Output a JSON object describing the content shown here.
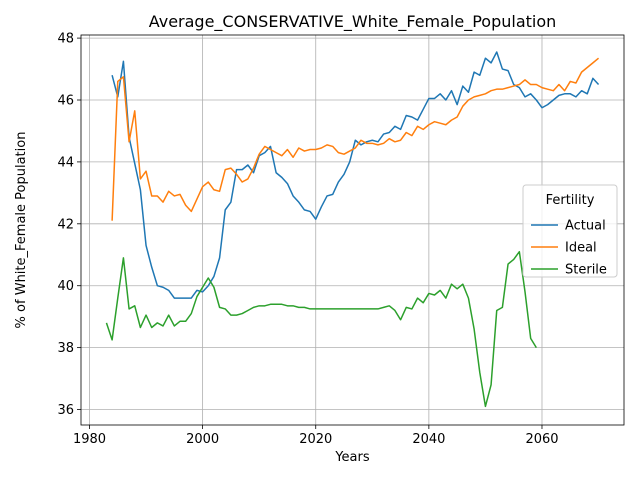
{
  "chart_data": {
    "type": "line",
    "title": "Average_CONSERVATIVE_White_Female_Population",
    "xlabel": "Years",
    "ylabel": "% of White_Female Population",
    "xlim": [
      1978.5,
      2074.5
    ],
    "ylim": [
      35.5,
      48.1
    ],
    "xticks": [
      1980,
      2000,
      2020,
      2040,
      2060
    ],
    "yticks": [
      36,
      38,
      40,
      42,
      44,
      46,
      48
    ],
    "grid": true,
    "legend": {
      "title": "Fertility",
      "position": "center-right"
    },
    "series": [
      {
        "name": "Actual",
        "color": "#1f77b4",
        "x": [
          1984,
          1985,
          1986,
          1987,
          1988,
          1989,
          1990,
          1991,
          1992,
          1993,
          1994,
          1995,
          1996,
          1997,
          1998,
          1999,
          2000,
          2001,
          2002,
          2003,
          2004,
          2005,
          2006,
          2007,
          2008,
          2009,
          2010,
          2011,
          2012,
          2013,
          2014,
          2015,
          2016,
          2017,
          2018,
          2019,
          2020,
          2021,
          2022,
          2023,
          2024,
          2025,
          2026,
          2027,
          2028,
          2029,
          2030,
          2031,
          2032,
          2033,
          2034,
          2035,
          2036,
          2037,
          2038,
          2039,
          2040,
          2041,
          2042,
          2043,
          2044,
          2045,
          2046,
          2047,
          2048,
          2049,
          2050,
          2051,
          2052,
          2053,
          2054,
          2055,
          2056,
          2057,
          2058,
          2059,
          2060,
          2061,
          2062,
          2063,
          2064,
          2065,
          2066,
          2067,
          2068,
          2069,
          2070
        ],
        "y": [
          46.8,
          46.1,
          47.25,
          44.8,
          43.95,
          43.1,
          41.3,
          40.6,
          40.0,
          39.95,
          39.85,
          39.6,
          39.6,
          39.6,
          39.6,
          39.85,
          39.8,
          40.0,
          40.3,
          40.9,
          42.45,
          42.7,
          43.75,
          43.75,
          43.9,
          43.65,
          44.2,
          44.3,
          44.5,
          43.65,
          43.5,
          43.3,
          42.9,
          42.7,
          42.45,
          42.4,
          42.15,
          42.55,
          42.9,
          42.95,
          43.35,
          43.6,
          44.0,
          44.7,
          44.55,
          44.65,
          44.7,
          44.65,
          44.9,
          44.95,
          45.15,
          45.05,
          45.5,
          45.45,
          45.35,
          45.7,
          46.05,
          46.05,
          46.2,
          46.0,
          46.3,
          45.85,
          46.45,
          46.25,
          46.9,
          46.8,
          47.35,
          47.2,
          47.55,
          47.0,
          46.95,
          46.5,
          46.4,
          46.1,
          46.2,
          46.0,
          45.75,
          45.85,
          46.0,
          46.15,
          46.2,
          46.2,
          46.1,
          46.3,
          46.2,
          46.7,
          46.5
        ]
      },
      {
        "name": "Ideal",
        "color": "#ff7f0e",
        "x": [
          1984,
          1985,
          1986,
          1987,
          1988,
          1989,
          1990,
          1991,
          1992,
          1993,
          1994,
          1995,
          1996,
          1997,
          1998,
          1999,
          2000,
          2001,
          2002,
          2003,
          2004,
          2005,
          2006,
          2007,
          2008,
          2009,
          2010,
          2011,
          2012,
          2013,
          2014,
          2015,
          2016,
          2017,
          2018,
          2019,
          2020,
          2021,
          2022,
          2023,
          2024,
          2025,
          2026,
          2027,
          2028,
          2029,
          2030,
          2031,
          2032,
          2033,
          2034,
          2035,
          2036,
          2037,
          2038,
          2039,
          2040,
          2041,
          2042,
          2043,
          2044,
          2045,
          2046,
          2047,
          2048,
          2049,
          2050,
          2051,
          2052,
          2053,
          2054,
          2055,
          2056,
          2057,
          2058,
          2059,
          2060,
          2061,
          2062,
          2063,
          2064,
          2065,
          2066,
          2067,
          2068,
          2069,
          2070
        ],
        "y": [
          42.1,
          46.6,
          46.75,
          44.65,
          45.65,
          43.45,
          43.7,
          42.9,
          42.9,
          42.7,
          43.05,
          42.9,
          42.95,
          42.6,
          42.4,
          42.8,
          43.2,
          43.35,
          43.1,
          43.05,
          43.75,
          43.8,
          43.6,
          43.35,
          43.45,
          43.8,
          44.25,
          44.5,
          44.4,
          44.3,
          44.2,
          44.4,
          44.15,
          44.45,
          44.35,
          44.4,
          44.4,
          44.45,
          44.55,
          44.5,
          44.3,
          44.25,
          44.35,
          44.45,
          44.7,
          44.6,
          44.6,
          44.55,
          44.6,
          44.75,
          44.65,
          44.7,
          44.95,
          44.85,
          45.15,
          45.05,
          45.2,
          45.3,
          45.25,
          45.2,
          45.35,
          45.45,
          45.8,
          46.0,
          46.1,
          46.15,
          46.2,
          46.3,
          46.35,
          46.35,
          46.4,
          46.45,
          46.5,
          46.65,
          46.5,
          46.5,
          46.4,
          46.35,
          46.3,
          46.5,
          46.3,
          46.6,
          46.55,
          46.9,
          47.05,
          47.2,
          47.35
        ]
      },
      {
        "name": "Sterile",
        "color": "#2ca02c",
        "x": [
          1983,
          1984,
          1985,
          1986,
          1987,
          1988,
          1989,
          1990,
          1991,
          1992,
          1993,
          1994,
          1995,
          1996,
          1997,
          1998,
          1999,
          2000,
          2001,
          2002,
          2003,
          2004,
          2005,
          2006,
          2007,
          2008,
          2009,
          2010,
          2011,
          2012,
          2013,
          2014,
          2015,
          2016,
          2017,
          2018,
          2019,
          2020,
          2021,
          2022,
          2023,
          2024,
          2025,
          2026,
          2027,
          2028,
          2029,
          2030,
          2031,
          2032,
          2033,
          2034,
          2035,
          2036,
          2037,
          2038,
          2039,
          2040,
          2041,
          2042,
          2043,
          2044,
          2045,
          2046,
          2047,
          2048,
          2049,
          2050,
          2051,
          2052,
          2053,
          2054,
          2055,
          2056,
          2057,
          2058,
          2059
        ],
        "y": [
          38.8,
          38.25,
          39.6,
          40.9,
          39.25,
          39.35,
          38.65,
          39.05,
          38.65,
          38.8,
          38.7,
          39.05,
          38.7,
          38.85,
          38.85,
          39.1,
          39.65,
          39.95,
          40.25,
          39.95,
          39.3,
          39.25,
          39.05,
          39.05,
          39.1,
          39.2,
          39.3,
          39.35,
          39.35,
          39.4,
          39.4,
          39.4,
          39.35,
          39.35,
          39.3,
          39.3,
          39.25,
          39.25,
          39.25,
          39.25,
          39.25,
          39.25,
          39.25,
          39.25,
          39.25,
          39.25,
          39.25,
          39.25,
          39.25,
          39.3,
          39.35,
          39.2,
          38.9,
          39.3,
          39.25,
          39.6,
          39.45,
          39.75,
          39.7,
          39.85,
          39.6,
          40.05,
          39.9,
          40.05,
          39.6,
          38.6,
          37.2,
          36.1,
          36.8,
          39.2,
          39.3,
          40.7,
          40.85,
          41.1,
          39.8,
          38.3,
          38.0
        ]
      }
    ]
  }
}
